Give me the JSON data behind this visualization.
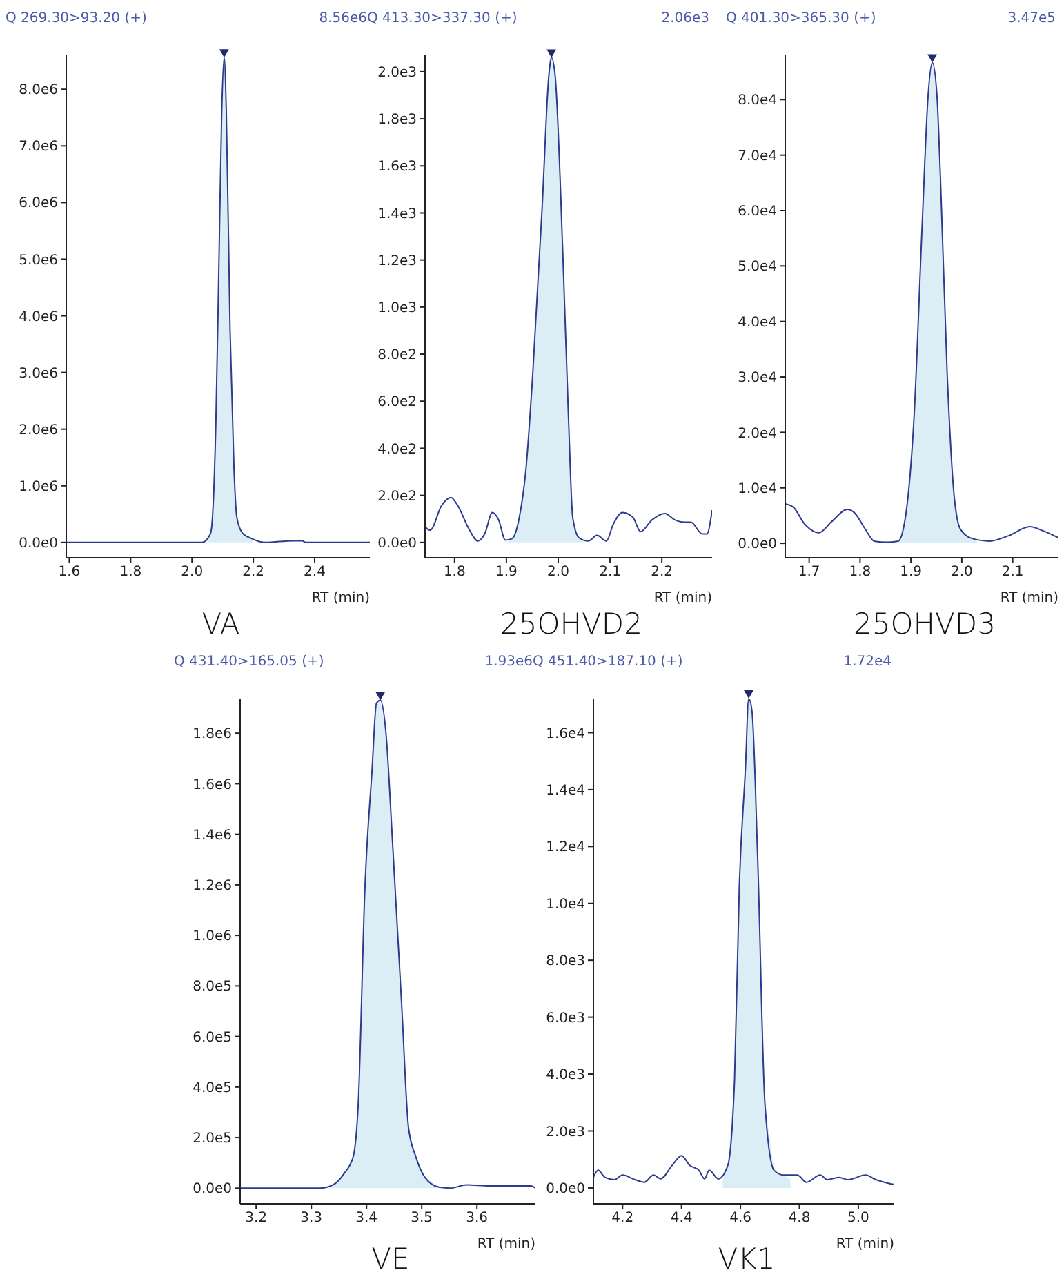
{
  "chart_data": [
    {
      "type": "line",
      "title": "Q 269.30>93.20 (+)",
      "annotations": [
        "8.56e6"
      ],
      "subtitle": "VA",
      "xlabel": "RT (min)",
      "xlim": [
        1.59,
        2.58
      ],
      "xticks": [
        {
          "value": 1.6,
          "label": "1.6"
        },
        {
          "value": 1.8,
          "label": "1.8"
        },
        {
          "value": 2.0,
          "label": "2.0"
        },
        {
          "value": 2.2,
          "label": "2.2"
        },
        {
          "value": 2.4,
          "label": "2.4"
        }
      ],
      "ylim": [
        -270000,
        8600000
      ],
      "yticks": [
        {
          "value": 0,
          "label": "0.0e0"
        },
        {
          "value": 1000000,
          "label": "1.0e6"
        },
        {
          "value": 2000000,
          "label": "2.0e6"
        },
        {
          "value": 3000000,
          "label": "3.0e6"
        },
        {
          "value": 4000000,
          "label": "4.0e6"
        },
        {
          "value": 5000000,
          "label": "5.0e6"
        },
        {
          "value": 6000000,
          "label": "6.0e6"
        },
        {
          "value": 7000000,
          "label": "7.0e6"
        },
        {
          "value": 8000000,
          "label": "8.0e6"
        }
      ],
      "series": [
        {
          "color": "#2e3a8c",
          "x": [
            1.59,
            2.033,
            2.06,
            2.069,
            2.078,
            2.087,
            2.097,
            2.105,
            2.112,
            2.124,
            2.137,
            2.146,
            2.164,
            2.194,
            2.24,
            2.33,
            2.36,
            2.37,
            2.58
          ],
          "values": [
            0,
            0,
            150000,
            650000,
            2150000,
            4650000,
            7600000,
            8560000,
            7600000,
            3800000,
            1300000,
            450000,
            170000,
            70000,
            0,
            30000,
            30000,
            0,
            0
          ]
        },
        {
          "type": "area",
          "color": "#dbeef6",
          "x": [
            2.05,
            2.06,
            2.069,
            2.078,
            2.087,
            2.097,
            2.105,
            2.112,
            2.124,
            2.137,
            2.146,
            2.164,
            2.194,
            2.2
          ],
          "values": [
            0,
            150000,
            650000,
            2150000,
            4650000,
            7600000,
            8560000,
            7600000,
            3800000,
            1300000,
            450000,
            170000,
            70000,
            0
          ]
        }
      ]
    },
    {
      "type": "line",
      "title": "Q 413.30>337.30 (+)",
      "annotations": [
        "2.06e3"
      ],
      "subtitle": "25OHVD2",
      "xlabel": "RT (min)",
      "xlim": [
        1.743,
        2.297
      ],
      "xticks": [
        {
          "value": 1.8,
          "label": "1.8"
        },
        {
          "value": 1.9,
          "label": "1.9"
        },
        {
          "value": 2.0,
          "label": "2.0"
        },
        {
          "value": 2.1,
          "label": "2.1"
        },
        {
          "value": 2.2,
          "label": "2.2"
        }
      ],
      "ylim": [
        -65,
        2070
      ],
      "yticks": [
        {
          "value": 0,
          "label": "0.0e0"
        },
        {
          "value": 200,
          "label": "2.0e2"
        },
        {
          "value": 400,
          "label": "4.0e2"
        },
        {
          "value": 600,
          "label": "6.0e2"
        },
        {
          "value": 800,
          "label": "8.0e2"
        },
        {
          "value": 1000,
          "label": "1.0e3"
        },
        {
          "value": 1200,
          "label": "1.2e3"
        },
        {
          "value": 1400,
          "label": "1.4e3"
        },
        {
          "value": 1600,
          "label": "1.6e3"
        },
        {
          "value": 1800,
          "label": "1.8e3"
        },
        {
          "value": 2000,
          "label": "2.0e3"
        }
      ],
      "series": [
        {
          "color": "#2e3a8c",
          "x": [
            1.743,
            1.753,
            1.775,
            1.793,
            1.806,
            1.828,
            1.845,
            1.858,
            1.873,
            1.885,
            1.898,
            1.911,
            1.924,
            1.938,
            1.951,
            1.969,
            1.982,
            1.987,
            1.994,
            2.009,
            2.02,
            2.028,
            2.04,
            2.058,
            2.075,
            2.093,
            2.106,
            2.124,
            2.144,
            2.159,
            2.181,
            2.206,
            2.225,
            2.243,
            2.256,
            2.278,
            2.287,
            2.297
          ],
          "values": [
            66,
            52,
            157,
            191,
            157,
            56,
            6,
            36,
            127,
            96,
            10,
            16,
            96,
            318,
            720,
            1423,
            1986,
            2060,
            1986,
            1222,
            519,
            107,
            20,
            6,
            30,
            6,
            76,
            127,
            107,
            46,
            96,
            123,
            96,
            86,
            86,
            36,
            36,
            137
          ]
        },
        {
          "type": "area",
          "color": "#dbeef6",
          "x": [
            1.9,
            1.911,
            1.924,
            1.938,
            1.951,
            1.969,
            1.982,
            1.987,
            1.994,
            2.009,
            2.02,
            2.028,
            2.04,
            2.05
          ],
          "values": [
            0,
            16,
            96,
            318,
            720,
            1423,
            1986,
            2060,
            1986,
            1222,
            519,
            107,
            20,
            0
          ]
        }
      ]
    },
    {
      "type": "line",
      "title": "Q 401.30>365.30 (+)",
      "annotations": [
        "3.47e5"
      ],
      "subtitle": "25OHVD3",
      "xlabel": "RT (min)",
      "xlim": [
        1.653,
        2.19
      ],
      "xticks": [
        {
          "value": 1.7,
          "label": "1.7"
        },
        {
          "value": 1.8,
          "label": "1.8"
        },
        {
          "value": 1.9,
          "label": "1.9"
        },
        {
          "value": 2.0,
          "label": "2.0"
        },
        {
          "value": 2.1,
          "label": "2.1"
        }
      ],
      "ylim": [
        -2600,
        88000
      ],
      "yticks": [
        {
          "value": 0,
          "label": "0.0e0"
        },
        {
          "value": 10000,
          "label": "1.0e4"
        },
        {
          "value": 20000,
          "label": "2.0e4"
        },
        {
          "value": 30000,
          "label": "3.0e4"
        },
        {
          "value": 40000,
          "label": "4.0e4"
        },
        {
          "value": 50000,
          "label": "5.0e4"
        },
        {
          "value": 60000,
          "label": "6.0e4"
        },
        {
          "value": 70000,
          "label": "7.0e4"
        },
        {
          "value": 80000,
          "label": "8.0e4"
        }
      ],
      "series": [
        {
          "color": "#2e3a8c",
          "x": [
            1.653,
            1.669,
            1.691,
            1.719,
            1.744,
            1.775,
            1.788,
            1.81,
            1.828,
            1.851,
            1.875,
            1.89,
            1.906,
            1.922,
            1.934,
            1.942,
            1.951,
            1.958,
            1.971,
            1.984,
            1.997,
            2.019,
            2.055,
            2.09,
            2.134,
            2.161,
            2.19
          ],
          "values": [
            7100,
            6500,
            3500,
            1900,
            3900,
            6100,
            5600,
            2600,
            400,
            200,
            400,
            5200,
            22500,
            57200,
            81000,
            86700,
            81000,
            65900,
            31200,
            9500,
            2600,
            900,
            400,
            1300,
            3000,
            2200,
            1000
          ]
        },
        {
          "type": "area",
          "color": "#dbeef6",
          "x": [
            1.875,
            1.89,
            1.906,
            1.922,
            1.934,
            1.942,
            1.951,
            1.958,
            1.971,
            1.984,
            1.997,
            2.019,
            2.03
          ],
          "values": [
            400,
            5200,
            22500,
            57200,
            81000,
            86700,
            81000,
            65900,
            31200,
            9500,
            2600,
            900,
            500
          ]
        }
      ]
    },
    {
      "type": "line",
      "title": "Q 431.40>165.05 (+)",
      "annotations": [
        "1.93e6"
      ],
      "subtitle": "VE",
      "xlabel": "RT (min)",
      "xlim": [
        3.171,
        3.706
      ],
      "xticks": [
        {
          "value": 3.2,
          "label": "3.2"
        },
        {
          "value": 3.3,
          "label": "3.3"
        },
        {
          "value": 3.4,
          "label": "3.4"
        },
        {
          "value": 3.5,
          "label": "3.5"
        },
        {
          "value": 3.6,
          "label": "3.6"
        }
      ],
      "ylim": [
        -62000,
        1937000
      ],
      "yticks": [
        {
          "value": 0,
          "label": "0.0e0"
        },
        {
          "value": 200000,
          "label": "2.0e5"
        },
        {
          "value": 400000,
          "label": "4.0e5"
        },
        {
          "value": 600000,
          "label": "6.0e5"
        },
        {
          "value": 800000,
          "label": "8.0e5"
        },
        {
          "value": 1000000,
          "label": "1.0e6"
        },
        {
          "value": 1200000,
          "label": "1.2e6"
        },
        {
          "value": 1400000,
          "label": "1.4e6"
        },
        {
          "value": 1600000,
          "label": "1.6e6"
        },
        {
          "value": 1800000,
          "label": "1.8e6"
        }
      ],
      "series": [
        {
          "color": "#2e3a8c",
          "x": [
            3.171,
            3.314,
            3.339,
            3.36,
            3.376,
            3.385,
            3.397,
            3.41,
            3.418,
            3.425,
            3.435,
            3.447,
            3.464,
            3.476,
            3.489,
            3.506,
            3.531,
            3.552,
            3.581,
            3.623,
            3.698,
            3.706
          ],
          "values": [
            0,
            0,
            13000,
            60000,
            126000,
            334000,
            1183000,
            1655000,
            1919000,
            1930000,
            1806000,
            1372000,
            711000,
            240000,
            126000,
            42000,
            4000,
            0,
            13000,
            9000,
            9000,
            0
          ]
        },
        {
          "type": "area",
          "color": "#dbeef6",
          "x": [
            3.33,
            3.339,
            3.36,
            3.376,
            3.385,
            3.397,
            3.41,
            3.418,
            3.425,
            3.435,
            3.447,
            3.464,
            3.476,
            3.489,
            3.506,
            3.531,
            3.552
          ],
          "values": [
            0,
            13000,
            60000,
            126000,
            334000,
            1183000,
            1655000,
            1919000,
            1930000,
            1806000,
            1372000,
            711000,
            240000,
            126000,
            42000,
            4000,
            0
          ]
        }
      ]
    },
    {
      "type": "line",
      "title": "Q 451.40>187.10 (+)",
      "annotations": [
        "1.72e4"
      ],
      "subtitle": "VK1",
      "xlabel": "RT (min)",
      "xlim": [
        4.101,
        5.122
      ],
      "xticks": [
        {
          "value": 4.2,
          "label": "4.2"
        },
        {
          "value": 4.4,
          "label": "4.4"
        },
        {
          "value": 4.6,
          "label": "4.6"
        },
        {
          "value": 4.8,
          "label": "4.8"
        },
        {
          "value": 5.0,
          "label": "5.0"
        }
      ],
      "ylim": [
        -560,
        17200
      ],
      "yticks": [
        {
          "value": 0,
          "label": "0.0e0"
        },
        {
          "value": 2000,
          "label": "2.0e3"
        },
        {
          "value": 4000,
          "label": "4.0e3"
        },
        {
          "value": 6000,
          "label": "6.0e3"
        },
        {
          "value": 8000,
          "label": "8.0e3"
        },
        {
          "value": 10000,
          "label": "1.0e4"
        },
        {
          "value": 12000,
          "label": "1.2e4"
        },
        {
          "value": 14000,
          "label": "1.4e4"
        },
        {
          "value": 16000,
          "label": "1.6e4"
        }
      ],
      "series": [
        {
          "color": "#2e3a8c",
          "x": [
            4.101,
            4.117,
            4.14,
            4.172,
            4.2,
            4.242,
            4.274,
            4.305,
            4.329,
            4.368,
            4.4,
            4.428,
            4.459,
            4.478,
            4.494,
            4.525,
            4.557,
            4.58,
            4.596,
            4.617,
            4.628,
            4.639,
            4.659,
            4.683,
            4.714,
            4.746,
            4.793,
            4.824,
            4.871,
            4.895,
            4.934,
            4.965,
            5.025,
            5.06,
            5.107,
            5.122
          ],
          "values": [
            370,
            620,
            370,
            290,
            450,
            290,
            200,
            450,
            320,
            790,
            1130,
            790,
            620,
            320,
            620,
            320,
            790,
            3820,
            10560,
            14760,
            17200,
            16780,
            11400,
            2980,
            620,
            450,
            450,
            200,
            450,
            290,
            370,
            290,
            450,
            290,
            150,
            120
          ]
        },
        {
          "type": "area",
          "color": "#dbeef6",
          "x": [
            4.54,
            4.557,
            4.58,
            4.596,
            4.617,
            4.628,
            4.639,
            4.659,
            4.683,
            4.714,
            4.746,
            4.77
          ],
          "values": [
            300,
            790,
            3820,
            10560,
            14760,
            17200,
            16780,
            11400,
            2980,
            620,
            450,
            300
          ]
        }
      ]
    }
  ]
}
